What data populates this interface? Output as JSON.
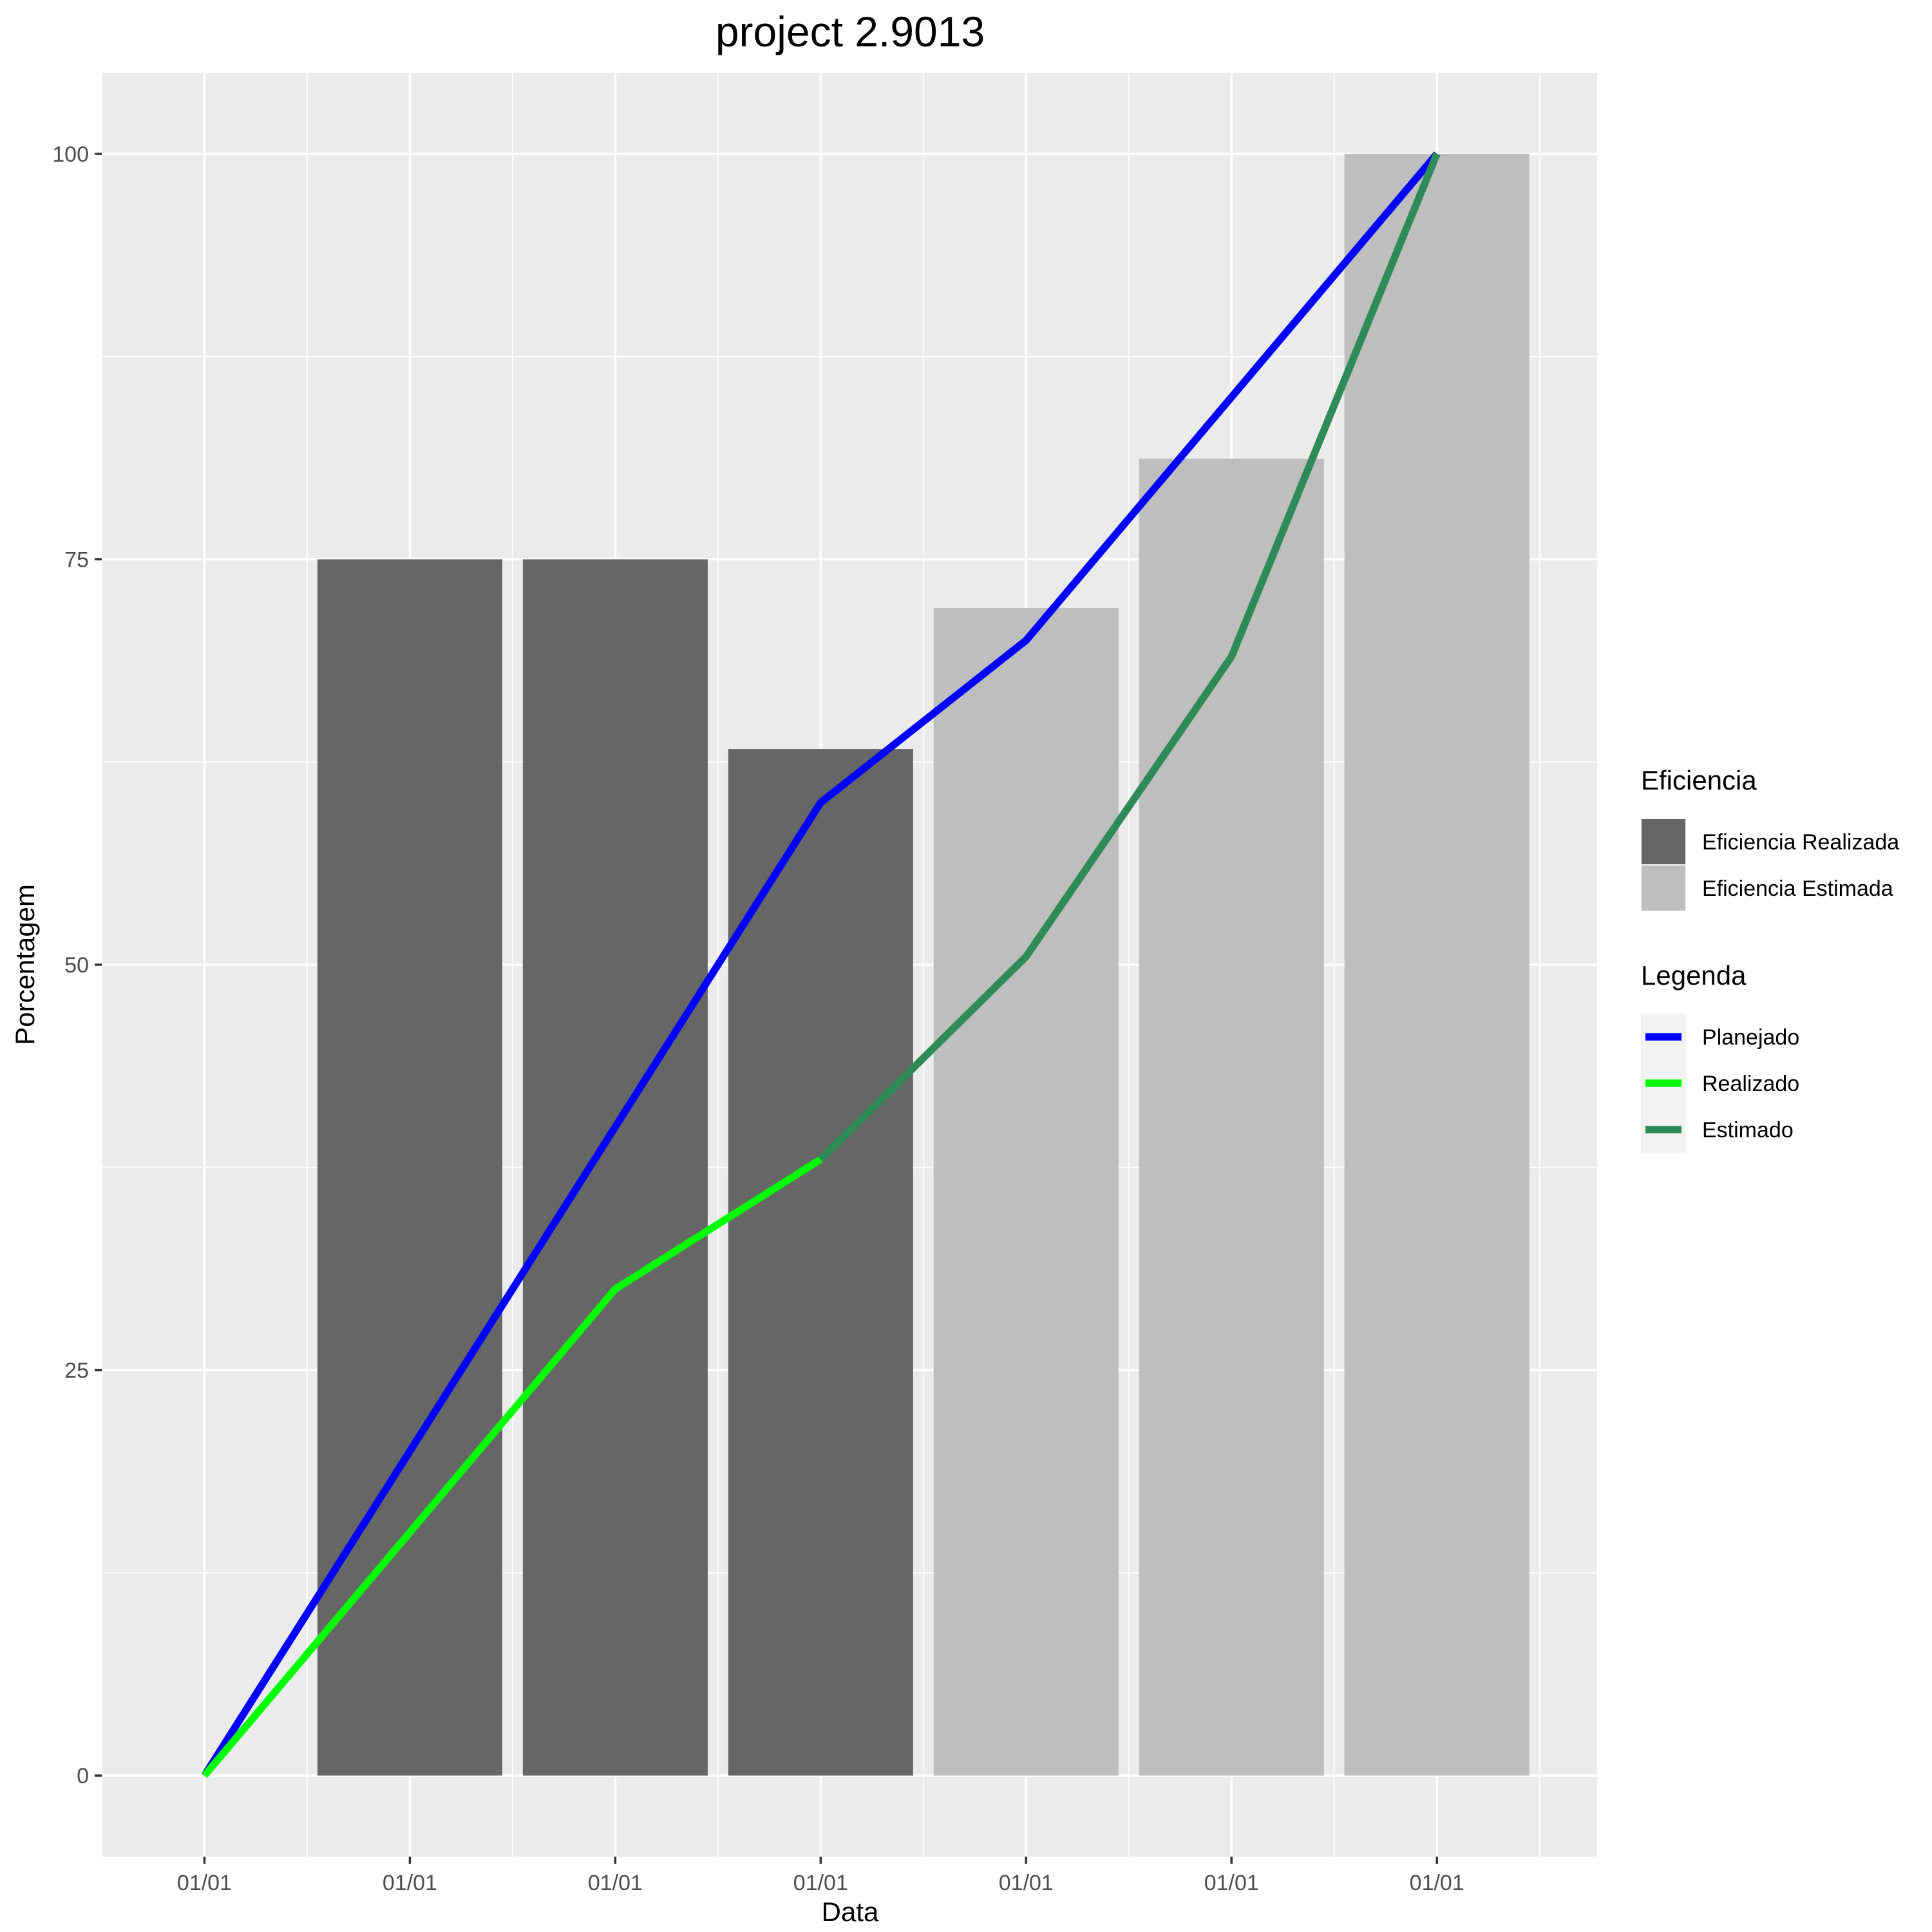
{
  "chart_data": {
    "type": "bar",
    "title": "project 2.9013",
    "xlabel": "Data",
    "ylabel": "Porcentagem",
    "categories": [
      "01/01",
      "01/01",
      "01/01",
      "01/01",
      "01/01",
      "01/01",
      "01/01"
    ],
    "ylim": [
      -5,
      105
    ],
    "yticks": [
      0,
      25,
      50,
      75,
      100
    ],
    "grid": true,
    "bars": [
      {
        "value": null,
        "group": null
      },
      {
        "value": 75,
        "group": "Eficiencia Realizada"
      },
      {
        "value": 75,
        "group": "Eficiencia Realizada"
      },
      {
        "value": 63.3,
        "group": "Eficiencia Realizada"
      },
      {
        "value": 72,
        "group": "Eficiencia Estimada"
      },
      {
        "value": 81.2,
        "group": "Eficiencia Estimada"
      },
      {
        "value": 100,
        "group": "Eficiencia Estimada"
      }
    ],
    "series": [
      {
        "name": "Planejado",
        "color": "#0000ff",
        "values": [
          0,
          20,
          40,
          60,
          70,
          85,
          100
        ]
      },
      {
        "name": "Realizado",
        "color": "#00ff00",
        "values": [
          0,
          15,
          30,
          38,
          null,
          null,
          null
        ]
      },
      {
        "name": "Estimado",
        "color": "#2e8b57",
        "values": [
          null,
          null,
          null,
          38,
          50.5,
          69,
          100
        ]
      }
    ],
    "legends": [
      {
        "title": "Eficiencia",
        "kind": "fill",
        "items": [
          {
            "label": "Eficiencia Realizada",
            "color": "#666666"
          },
          {
            "label": "Eficiencia Estimada",
            "color": "#bebebe"
          }
        ]
      },
      {
        "title": "Legenda",
        "kind": "line",
        "items": [
          {
            "label": "Planejado",
            "color": "#0000ff"
          },
          {
            "label": "Realizado",
            "color": "#00ff00"
          },
          {
            "label": "Estimado",
            "color": "#2e8b57"
          }
        ]
      }
    ],
    "legend_position": "right",
    "colors": {
      "panel_background": "#ebebeb",
      "grid": "#ffffff"
    }
  }
}
